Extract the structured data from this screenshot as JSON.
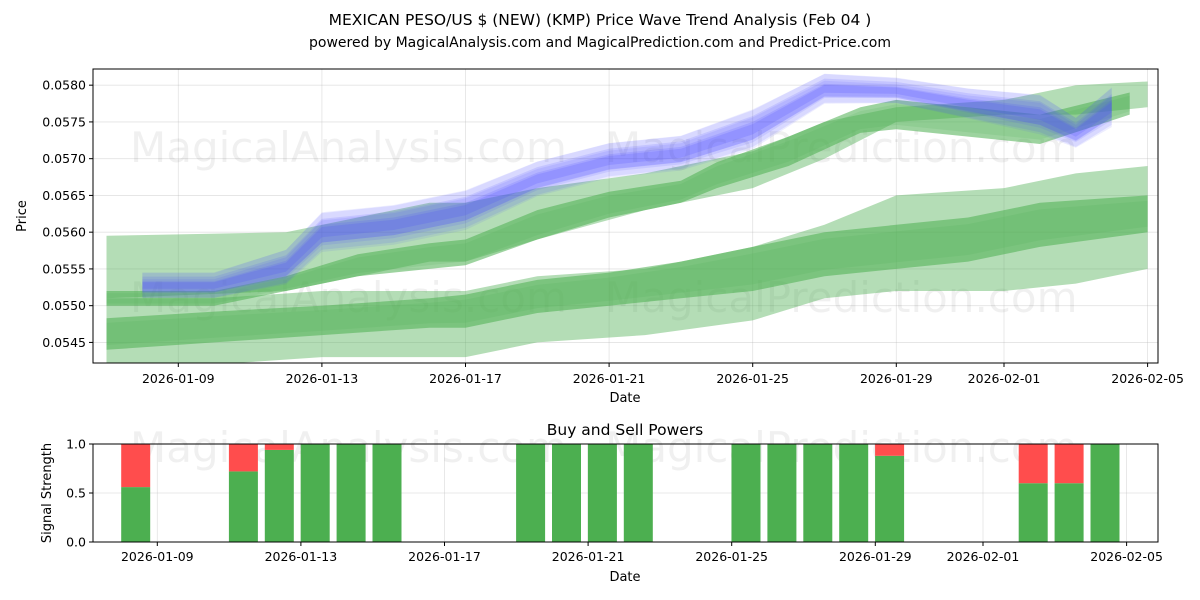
{
  "chart_data": [
    {
      "type": "area",
      "title": "MEXICAN PESO/US $ (NEW) (KMP) Price Wave Trend Analysis (Feb 04 )",
      "subtitle": "powered by MagicalAnalysis.com and MagicalPrediction.com and Predict-Price.com",
      "xlabel": "Date",
      "ylabel": "Price",
      "x_ticks": [
        "2026-01-09",
        "2026-01-13",
        "2026-01-17",
        "2026-01-21",
        "2026-01-25",
        "2026-01-29",
        "2026-02-01",
        "2026-02-05"
      ],
      "y_ticks": [
        "0.0545",
        "0.0550",
        "0.0555",
        "0.0560",
        "0.0565",
        "0.0570",
        "0.0575",
        "0.0580"
      ],
      "ylim": [
        0.05422,
        0.05822
      ],
      "grid": true,
      "watermarks": [
        "MagicalAnalysis.com",
        "MagicalPrediction.com"
      ],
      "series": [
        {
          "name": "blue-price-wave",
          "color": "#4a4aff",
          "days": [
            1,
            3,
            5,
            6,
            8,
            10,
            12,
            14,
            16,
            18,
            20,
            22,
            24,
            26,
            27,
            28
          ],
          "low": [
            0.05515,
            0.05515,
            0.05535,
            0.0558,
            0.0559,
            0.0561,
            0.05655,
            0.0568,
            0.0569,
            0.0572,
            0.0578,
            0.0578,
            0.0576,
            0.0574,
            0.0572,
            0.0575
          ],
          "high": [
            0.0554,
            0.0554,
            0.0557,
            0.0562,
            0.0563,
            0.0565,
            0.0569,
            0.05715,
            0.05725,
            0.0576,
            0.0581,
            0.05805,
            0.0579,
            0.0578,
            0.0575,
            0.0579
          ]
        },
        {
          "name": "green-upper-wave",
          "color": "#4caf50",
          "days": [
            0,
            3,
            5,
            7,
            9,
            10,
            12,
            14,
            16,
            17,
            19,
            21,
            22,
            24,
            26,
            28.5
          ],
          "low": [
            0.055,
            0.055,
            0.0552,
            0.0554,
            0.0555,
            0.05555,
            0.0559,
            0.0562,
            0.0564,
            0.0566,
            0.0569,
            0.05735,
            0.0574,
            0.0573,
            0.0572,
            0.0576
          ],
          "high": [
            0.0552,
            0.0552,
            0.0554,
            0.0557,
            0.05585,
            0.0559,
            0.0563,
            0.05655,
            0.0567,
            0.05695,
            0.0573,
            0.0577,
            0.0578,
            0.0577,
            0.0576,
            0.0579
          ]
        },
        {
          "name": "green-upper-band",
          "color": "#4caf50",
          "days": [
            0,
            5,
            9,
            10,
            12,
            15,
            18,
            20,
            22,
            25,
            27,
            29
          ],
          "low": [
            0.0551,
            0.0552,
            0.0556,
            0.0556,
            0.0559,
            0.0563,
            0.0566,
            0.057,
            0.0575,
            0.0576,
            0.0576,
            0.0577
          ],
          "high": [
            0.05595,
            0.056,
            0.0564,
            0.0564,
            0.0566,
            0.0568,
            0.0571,
            0.0575,
            0.0577,
            0.0578,
            0.058,
            0.05805
          ]
        },
        {
          "name": "green-lower-band",
          "color": "#4caf50",
          "days": [
            0,
            3,
            6,
            9,
            10,
            12,
            15,
            18,
            20,
            22,
            25,
            27,
            29
          ],
          "low": [
            0.0542,
            0.0542,
            0.0543,
            0.0543,
            0.0543,
            0.0545,
            0.0546,
            0.0548,
            0.0551,
            0.0552,
            0.0552,
            0.0553,
            0.0555
          ],
          "high": [
            0.0551,
            0.0551,
            0.0552,
            0.0552,
            0.0552,
            0.0554,
            0.0555,
            0.0558,
            0.0561,
            0.0565,
            0.0566,
            0.0568,
            0.0569
          ]
        },
        {
          "name": "green-lower-wave",
          "color": "#4caf50",
          "days": [
            0,
            3,
            6,
            9,
            10,
            12,
            14,
            16,
            18,
            20,
            22,
            24,
            26,
            29
          ],
          "low": [
            0.0544,
            0.0545,
            0.0546,
            0.0547,
            0.0547,
            0.0549,
            0.055,
            0.0551,
            0.0552,
            0.0554,
            0.0555,
            0.0556,
            0.0558,
            0.056
          ],
          "high": [
            0.05483,
            0.05492,
            0.055,
            0.0551,
            0.05515,
            0.05535,
            0.05545,
            0.0556,
            0.0558,
            0.056,
            0.0561,
            0.0562,
            0.0564,
            0.0565
          ]
        }
      ]
    },
    {
      "type": "bar",
      "title": "Buy and Sell Powers",
      "xlabel": "Date",
      "ylabel": "Signal Strength",
      "x_ticks": [
        "2026-01-09",
        "2026-01-13",
        "2026-01-17",
        "2026-01-21",
        "2026-01-25",
        "2026-01-29",
        "2026-02-01",
        "2026-02-05"
      ],
      "y_ticks": [
        "0.0",
        "0.5",
        "1.0"
      ],
      "ylim": [
        0,
        1
      ],
      "buy_color": "#4caf50",
      "sell_color": "#ff4d4d",
      "days": [
        1,
        4,
        5,
        6,
        7,
        8,
        12,
        13,
        14,
        15,
        18,
        19,
        20,
        21,
        22,
        26,
        27,
        28
      ],
      "buy": [
        0.56,
        0.72,
        0.94,
        1.0,
        1.0,
        1.0,
        1.0,
        1.0,
        1.0,
        1.0,
        1.0,
        1.0,
        1.0,
        1.0,
        0.88,
        0.6,
        0.6,
        1.0
      ],
      "sell": [
        0.44,
        0.28,
        0.06,
        0.0,
        0.0,
        0.0,
        0.0,
        0.0,
        0.0,
        0.0,
        0.0,
        0.0,
        0.0,
        0.0,
        0.12,
        0.4,
        0.4,
        0.0
      ]
    }
  ]
}
